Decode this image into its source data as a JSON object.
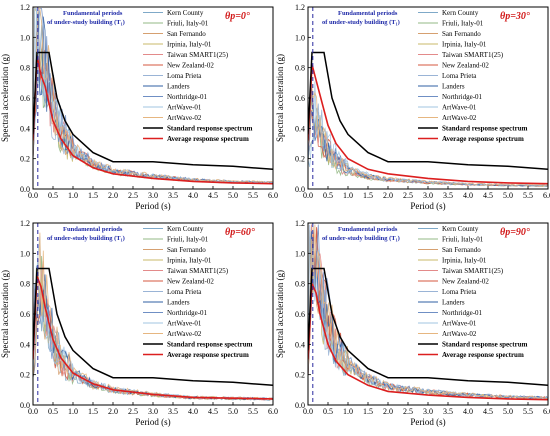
{
  "figure": {
    "annotation": "Fundamental periods of under-study building (T₁)",
    "annotation_line1": "Fundamental periods",
    "annotation_line2": "of under-study building (T₁)",
    "fundamental_period_s": 0.12
  },
  "legend_entries": [
    {
      "name": "Kern County",
      "color": "#7fa9c8",
      "bold": false
    },
    {
      "name": "Friuli, Italy-01",
      "color": "#93b884",
      "bold": false
    },
    {
      "name": "San Fernando",
      "color": "#d6a070",
      "bold": false
    },
    {
      "name": "Irpinia, Italy-01",
      "color": "#c8b86a",
      "bold": false
    },
    {
      "name": "Taiwan SMART1(25)",
      "color": "#e38a8a",
      "bold": false
    },
    {
      "name": "New Zealand-02",
      "color": "#d4573f",
      "bold": false
    },
    {
      "name": "Loma Prieta",
      "color": "#9ab4d6",
      "bold": false
    },
    {
      "name": "Landers",
      "color": "#2f5fa3",
      "bold": false
    },
    {
      "name": "Northridge-01",
      "color": "#6f8fc4",
      "bold": false
    },
    {
      "name": "ArtWave-01",
      "color": "#a0c4e0",
      "bold": false
    },
    {
      "name": "ArtWave-02",
      "color": "#e6b680",
      "bold": false
    },
    {
      "name": "Standard response spectrum",
      "color": "#000000",
      "bold": true
    },
    {
      "name": "Average response spectrum",
      "color": "#dc1f1f",
      "bold": true
    }
  ],
  "chart_data": [
    {
      "type": "line",
      "panel_label": "θp=0°",
      "xlabel": "Period (s)",
      "ylabel": "Spectral acceleration (g)",
      "xlim": [
        0,
        6.0
      ],
      "ylim": [
        0,
        1.2
      ],
      "xticks": [
        "0.0",
        "0.5",
        "1.0",
        "1.5",
        "2.0",
        "2.5",
        "3.0",
        "3.5",
        "4.0",
        "4.5",
        "5.0",
        "5.5",
        "6.0"
      ],
      "yticks": [
        "0.0",
        "0.2",
        "0.4",
        "0.6",
        "0.8",
        "1.0",
        "1.2"
      ],
      "grid": false,
      "legend_position": "top-right",
      "standard_spectrum": {
        "x": [
          0,
          0.1,
          0.4,
          0.6,
          0.8,
          1.0,
          1.5,
          2.0,
          3.0,
          4.0,
          5.0,
          6.0
        ],
        "y": [
          0.36,
          0.9,
          0.9,
          0.6,
          0.45,
          0.36,
          0.24,
          0.18,
          0.18,
          0.16,
          0.15,
          0.13
        ]
      },
      "average_spectrum": {
        "x": [
          0,
          0.1,
          0.2,
          0.3,
          0.5,
          0.7,
          1.0,
          1.5,
          2.0,
          3.0,
          4.0,
          5.0,
          6.0
        ],
        "y": [
          0.32,
          0.88,
          0.75,
          0.68,
          0.45,
          0.33,
          0.22,
          0.14,
          0.1,
          0.07,
          0.05,
          0.04,
          0.035
        ]
      }
    },
    {
      "type": "line",
      "panel_label": "θp=30°",
      "xlabel": "Period (s)",
      "ylabel": "Spectral acceleration (g)",
      "xlim": [
        0,
        6.0
      ],
      "ylim": [
        0,
        1.2
      ],
      "xticks": [
        "0.0",
        "0.5",
        "1.0",
        "1.5",
        "2.0",
        "2.5",
        "3.0",
        "3.5",
        "4.0",
        "4.5",
        "5.0",
        "5.5",
        "6.0"
      ],
      "yticks": [
        "0.0",
        "0.2",
        "0.4",
        "0.6",
        "0.8",
        "1.0",
        "1.2"
      ],
      "grid": false,
      "legend_position": "top-right",
      "standard_spectrum": {
        "x": [
          0,
          0.1,
          0.4,
          0.6,
          0.8,
          1.0,
          1.5,
          2.0,
          3.0,
          4.0,
          5.0,
          6.0
        ],
        "y": [
          0.36,
          0.9,
          0.9,
          0.6,
          0.45,
          0.36,
          0.24,
          0.18,
          0.18,
          0.16,
          0.15,
          0.13
        ]
      },
      "average_spectrum": {
        "x": [
          0,
          0.1,
          0.2,
          0.3,
          0.5,
          0.7,
          1.0,
          1.5,
          2.0,
          3.0,
          4.0,
          5.0,
          6.0
        ],
        "y": [
          0.32,
          0.82,
          0.72,
          0.62,
          0.42,
          0.3,
          0.2,
          0.13,
          0.1,
          0.07,
          0.05,
          0.04,
          0.035
        ]
      }
    },
    {
      "type": "line",
      "panel_label": "θp=60°",
      "xlabel": "Period (s)",
      "ylabel": "Spectral acceleration (g)",
      "xlim": [
        0,
        6.0
      ],
      "ylim": [
        0,
        1.2
      ],
      "xticks": [
        "0.0",
        "0.5",
        "1.0",
        "1.5",
        "2.0",
        "2.5",
        "3.0",
        "3.5",
        "4.0",
        "4.5",
        "5.0",
        "5.5",
        "6.0"
      ],
      "yticks": [
        "0.0",
        "0.2",
        "0.4",
        "0.6",
        "0.8",
        "1.0",
        "1.2"
      ],
      "grid": false,
      "legend_position": "top-right",
      "standard_spectrum": {
        "x": [
          0,
          0.1,
          0.4,
          0.6,
          0.8,
          1.0,
          1.5,
          2.0,
          3.0,
          4.0,
          5.0,
          6.0
        ],
        "y": [
          0.36,
          0.9,
          0.9,
          0.6,
          0.45,
          0.36,
          0.24,
          0.18,
          0.18,
          0.16,
          0.15,
          0.13
        ]
      },
      "average_spectrum": {
        "x": [
          0,
          0.1,
          0.2,
          0.3,
          0.5,
          0.7,
          1.0,
          1.5,
          2.0,
          3.0,
          4.0,
          5.0,
          6.0
        ],
        "y": [
          0.3,
          0.85,
          0.78,
          0.65,
          0.43,
          0.31,
          0.21,
          0.14,
          0.1,
          0.07,
          0.05,
          0.045,
          0.04
        ]
      }
    },
    {
      "type": "line",
      "panel_label": "θp=90°",
      "xlabel": "Period (s)",
      "ylabel": "Spectral acceleration (g)",
      "xlim": [
        0,
        6.0
      ],
      "ylim": [
        0,
        1.2
      ],
      "xticks": [
        "0.0",
        "0.5",
        "1.0",
        "1.5",
        "2.0",
        "2.5",
        "3.0",
        "3.5",
        "4.0",
        "4.5",
        "5.0",
        "5.5",
        "6.0"
      ],
      "yticks": [
        "0.0",
        "0.2",
        "0.4",
        "0.6",
        "0.8",
        "1.0",
        "1.2"
      ],
      "grid": false,
      "legend_position": "top-right",
      "standard_spectrum": {
        "x": [
          0,
          0.1,
          0.4,
          0.6,
          0.8,
          1.0,
          1.5,
          2.0,
          3.0,
          4.0,
          5.0,
          6.0
        ],
        "y": [
          0.36,
          0.9,
          0.9,
          0.6,
          0.45,
          0.36,
          0.24,
          0.18,
          0.18,
          0.16,
          0.15,
          0.13
        ]
      },
      "average_spectrum": {
        "x": [
          0,
          0.1,
          0.2,
          0.3,
          0.5,
          0.7,
          1.0,
          1.5,
          2.0,
          3.0,
          4.0,
          5.0,
          6.0
        ],
        "y": [
          0.3,
          0.8,
          0.74,
          0.6,
          0.4,
          0.29,
          0.2,
          0.13,
          0.09,
          0.065,
          0.05,
          0.04,
          0.035
        ]
      }
    }
  ]
}
